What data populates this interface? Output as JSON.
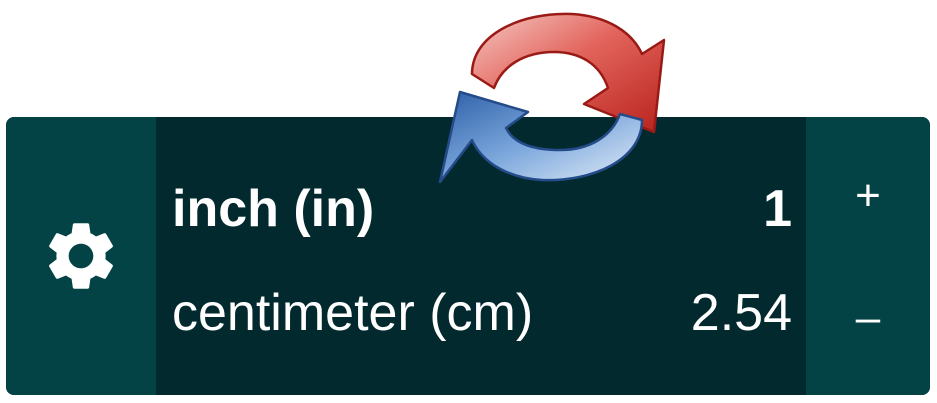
{
  "converter": {
    "from": {
      "unit": "inch (in)",
      "value": "1"
    },
    "to": {
      "unit": "centimeter (cm)",
      "value": "2.54"
    }
  },
  "stepper": {
    "increment_label": "+",
    "decrement_label": "–"
  },
  "icons": {
    "settings": "gear-icon",
    "swap": "swap-arrows-icon"
  },
  "colors": {
    "panel": "#034245",
    "panel_dark": "#022a2e",
    "text": "#ffffff",
    "arrow_red": "#d9534f",
    "arrow_blue": "#5b8fd0"
  }
}
